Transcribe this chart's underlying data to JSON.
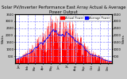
{
  "title": "Solar PV/Inverter Performance East Array Actual & Average Power Output",
  "title_fontsize": 3.8,
  "title_color": "#000000",
  "bg_color": "#c8c8c8",
  "plot_bg_color": "#ffffff",
  "bar_color": "#ff0000",
  "avg_line_color": "#0000ff",
  "grid_color": "#8888ff",
  "ylabel_left": "Watts",
  "ylabel_right": "Watts",
  "ylim": [
    0,
    3500
  ],
  "ytick_values": [
    500,
    1000,
    1500,
    2000,
    2500,
    3000,
    3500
  ],
  "num_points": 365,
  "legend_entries": [
    "Actual Power",
    "Average Power"
  ],
  "legend_colors": [
    "#ff0000",
    "#0000ff"
  ],
  "month_positions": [
    15,
    46,
    74,
    105,
    135,
    166,
    196,
    227,
    258,
    288,
    319,
    349
  ],
  "month_labels": [
    "Jan",
    "Feb",
    "Mar",
    "Apr",
    "May",
    "Jun",
    "Jul",
    "Aug",
    "Sep",
    "Oct",
    "Nov",
    "Dec"
  ]
}
